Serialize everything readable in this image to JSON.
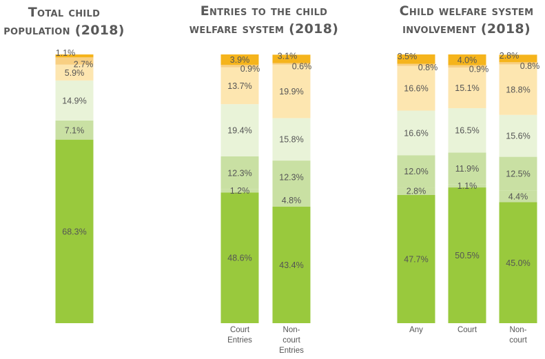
{
  "colors": {
    "segments": [
      "#99c93d",
      "#c9e0a3",
      "#e9f3d8",
      "#fde6b0",
      "#f8cf82",
      "#f5b41c"
    ],
    "title": "#595959",
    "label": "#555555"
  },
  "chart_data": [
    {
      "type": "bar",
      "stacked": true,
      "title_lines": [
        "Total child",
        "population (2018)"
      ],
      "categories": [
        []
      ],
      "series": [
        {
          "values": [
            68.3
          ]
        },
        {
          "values": [
            7.1
          ]
        },
        {
          "values": [
            14.9
          ]
        },
        {
          "values": [
            5.9
          ]
        },
        {
          "values": [
            2.7
          ]
        },
        {
          "values": [
            1.1
          ]
        }
      ],
      "ylim": [
        0,
        100
      ]
    },
    {
      "type": "bar",
      "stacked": true,
      "title_lines": [
        "Entries to the child",
        "welfare system (2018)"
      ],
      "categories": [
        [
          "Court",
          "Entries"
        ],
        [
          "Non-",
          "court",
          "Entries"
        ]
      ],
      "series": [
        {
          "values": [
            48.6,
            43.4
          ]
        },
        {
          "values": [
            1.2,
            4.8
          ]
        },
        {
          "values": [
            12.3,
            12.3
          ]
        },
        {
          "values": [
            19.4,
            15.8
          ]
        },
        {
          "values": [
            13.7,
            19.9
          ]
        },
        {
          "values": [
            0.9,
            0.6
          ]
        },
        {
          "values": [
            3.9,
            3.1
          ]
        }
      ],
      "ylim": [
        0,
        100
      ]
    },
    {
      "type": "bar",
      "stacked": true,
      "title_lines": [
        "Child welfare system",
        "involvement (2018)"
      ],
      "categories": [
        [
          "Any"
        ],
        [
          "Court"
        ],
        [
          "Non-",
          "court"
        ]
      ],
      "series": [
        {
          "values": [
            47.7,
            50.5,
            45.0
          ]
        },
        {
          "values": [
            2.8,
            1.1,
            4.4
          ]
        },
        {
          "values": [
            12.0,
            11.9,
            12.5
          ]
        },
        {
          "values": [
            16.6,
            16.5,
            15.6
          ]
        },
        {
          "values": [
            16.6,
            15.1,
            18.8
          ]
        },
        {
          "values": [
            0.8,
            0.9,
            0.8
          ]
        },
        {
          "values": [
            3.5,
            4.0,
            2.8
          ]
        }
      ],
      "ylim": [
        0,
        100
      ]
    }
  ]
}
